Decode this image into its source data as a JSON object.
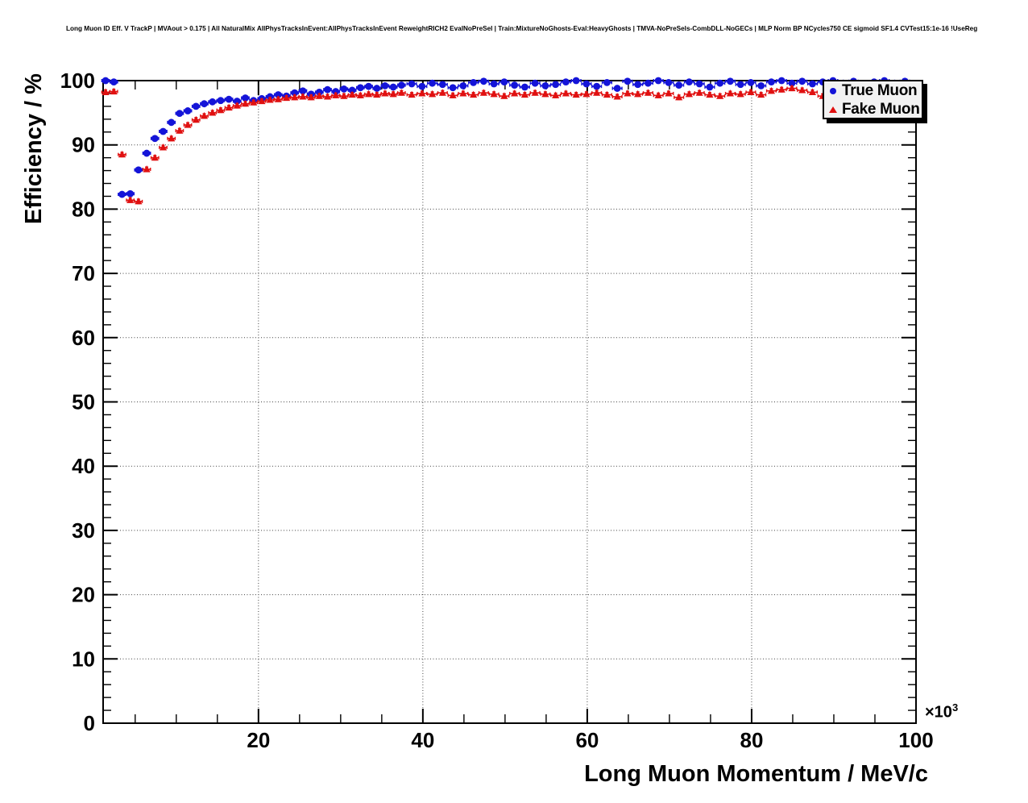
{
  "header": {
    "title": "Long Muon ID Eff. V TrackP | MVAout > 0.175 | All NaturalMix AllPhysTracksInEvent:AllPhysTracksInEvent ReweightRICH2 EvalNoPreSel | Train:MixtureNoGhosts-Eval:HeavyGhosts | TMVA-NoPreSels-CombDLL-NoGECs | MLP Norm BP NCycles750 CE sigmoid SF1.4 CVTest15:1e-16 !UseReg"
  },
  "chart_data": {
    "type": "scatter",
    "title": "Long Muon ID Eff. V TrackP | MVAout > 0.175 | All NaturalMix AllPhysTracksInEvent:AllPhysTracksInEvent ReweightRICH2 EvalNoPreSel | Train:MixtureNoGhosts-Eval:HeavyGhosts | TMVA-NoPreSels-CombDLL-NoGECs | MLP Norm BP NCycles750 CE sigmoid SF1.4 CVTest15:1e-16 !UseReg",
    "xlabel": "Long Muon Momentum / MeV/c",
    "ylabel": "Efficiency / %",
    "x_exponent_base": "×10",
    "x_exponent_power": "3",
    "xlim": [
      1.1,
      100.0
    ],
    "ylim": [
      0,
      100
    ],
    "xticks": [
      20,
      40,
      60,
      80,
      100
    ],
    "yticks": [
      0,
      10,
      20,
      30,
      40,
      50,
      60,
      70,
      80,
      90,
      100
    ],
    "x_minor_step": 5,
    "y_minor_step": 2,
    "grid": "dotted-major",
    "legend_position": "top-right",
    "frame_color": "#000000",
    "background_color": "#ffffff",
    "x": [
      1.4,
      2.4,
      3.4,
      4.4,
      5.4,
      6.4,
      7.4,
      8.4,
      9.4,
      10.4,
      11.4,
      12.4,
      13.4,
      14.4,
      15.4,
      16.4,
      17.4,
      18.4,
      19.4,
      20.4,
      21.4,
      22.4,
      23.4,
      24.4,
      25.4,
      26.4,
      27.4,
      28.4,
      29.4,
      30.4,
      31.4,
      32.4,
      33.4,
      34.4,
      35.4,
      36.4,
      37.4,
      38.65,
      39.9,
      41.15,
      42.4,
      43.65,
      44.9,
      46.15,
      47.4,
      48.65,
      49.9,
      51.15,
      52.4,
      53.65,
      54.9,
      56.15,
      57.4,
      58.65,
      59.9,
      61.15,
      62.4,
      63.65,
      64.9,
      66.15,
      67.4,
      68.65,
      69.9,
      71.15,
      72.4,
      73.65,
      74.9,
      76.15,
      77.4,
      78.65,
      79.9,
      81.15,
      82.4,
      83.65,
      84.9,
      86.15,
      87.4,
      88.65,
      89.9,
      91.15,
      92.4,
      93.65,
      94.9,
      96.15,
      97.4,
      98.65,
      99.9
    ],
    "series": [
      {
        "name": "True Muon",
        "marker": "circle",
        "color": "#1414d8",
        "values": [
          100.0,
          99.8,
          82.3,
          82.4,
          86.1,
          88.7,
          91.0,
          92.1,
          93.5,
          94.9,
          95.3,
          96.0,
          96.4,
          96.7,
          96.9,
          97.1,
          96.8,
          97.3,
          96.9,
          97.2,
          97.5,
          97.8,
          97.6,
          98.1,
          98.4,
          97.9,
          98.2,
          98.6,
          98.3,
          98.7,
          98.5,
          98.9,
          99.1,
          98.8,
          99.2,
          99.0,
          99.3,
          99.5,
          99.1,
          99.6,
          99.4,
          98.9,
          99.2,
          99.7,
          99.9,
          99.5,
          99.8,
          99.3,
          99.0,
          99.6,
          99.2,
          99.4,
          99.8,
          100.0,
          99.5,
          99.1,
          99.7,
          98.8,
          99.9,
          99.4,
          99.6,
          100.0,
          99.7,
          99.3,
          99.8,
          99.5,
          99.0,
          99.6,
          99.9,
          99.4,
          99.7,
          99.2,
          99.8,
          100.0,
          99.6,
          99.9,
          99.5,
          99.8,
          100.0,
          99.6,
          99.9,
          99.4,
          99.8,
          100.0,
          99.6,
          99.9,
          99.5
        ]
      },
      {
        "name": "Fake Muon",
        "marker": "triangle",
        "color": "#e01010",
        "values": [
          98.2,
          98.3,
          88.5,
          81.4,
          81.2,
          86.2,
          88.0,
          89.6,
          91.0,
          92.2,
          93.1,
          93.9,
          94.5,
          95.0,
          95.4,
          95.8,
          96.1,
          96.4,
          96.6,
          96.8,
          97.0,
          97.1,
          97.3,
          97.4,
          97.5,
          97.4,
          97.6,
          97.5,
          97.7,
          97.6,
          97.8,
          97.7,
          97.9,
          97.8,
          98.0,
          97.9,
          98.1,
          97.8,
          98.0,
          97.9,
          98.1,
          97.7,
          98.0,
          97.8,
          98.1,
          97.9,
          97.6,
          98.0,
          97.8,
          98.1,
          97.9,
          97.7,
          98.0,
          97.8,
          97.9,
          98.1,
          97.8,
          97.5,
          98.0,
          97.9,
          98.1,
          97.7,
          98.0,
          97.4,
          97.9,
          98.1,
          97.8,
          97.6,
          98.0,
          97.9,
          98.2,
          97.8,
          98.4,
          98.6,
          98.8,
          98.5,
          98.2,
          97.6,
          97.3,
          97.8,
          98.0,
          97.7,
          97.9,
          98.1,
          97.8,
          98.0,
          97.9
        ]
      }
    ]
  },
  "legend": {
    "items": [
      {
        "label": "True Muon",
        "marker": "circle",
        "color": "#1414d8"
      },
      {
        "label": "Fake Muon",
        "marker": "triangle",
        "color": "#e01010"
      }
    ]
  }
}
